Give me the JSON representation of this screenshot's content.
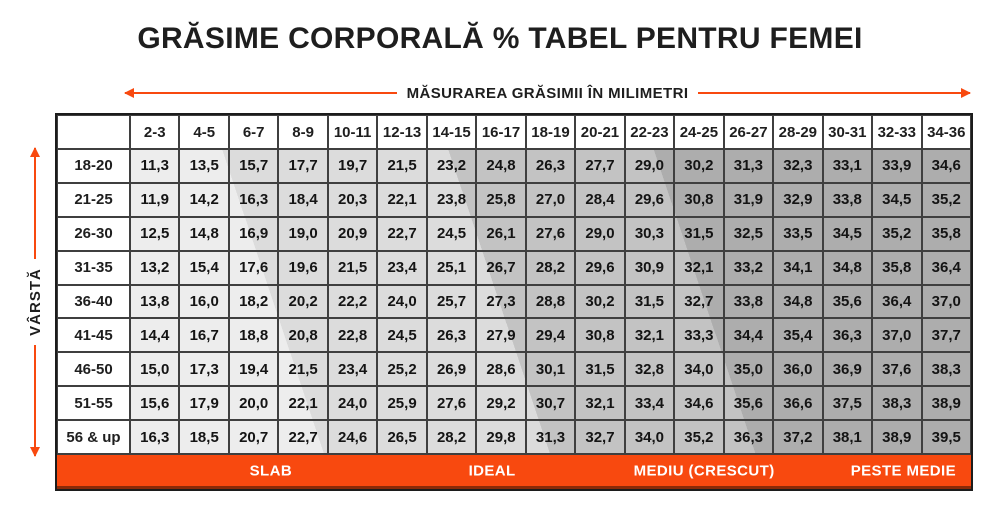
{
  "title": "GRĂSIME CORPORALĂ % TABEL PENTRU FEMEI",
  "measure_axis": {
    "label": "MĂSURAREA GRĂSIMII ÎN MILIMETRI"
  },
  "age_axis": {
    "label": "VÂRSTĂ"
  },
  "colors": {
    "accent_orange": "#F8490F",
    "banner_text": "#FFFFFF",
    "grid_line": "#3F3F3F",
    "band_lightest": "#EDEDED",
    "band_light": "#DCDCDC",
    "band_medium": "#C3C3C3",
    "band_dark": "#ADADAD",
    "title_text": "#1E1E1E"
  },
  "chart_data": {
    "type": "table",
    "title": "GRĂSIME CORPORALĂ % TABEL PENTRU FEMEI",
    "xlabel": "MĂSURAREA GRĂSIMII ÎN MILIMETRI",
    "ylabel": "VÂRSTĂ",
    "decimal_separator": ",",
    "columns": [
      "2-3",
      "4-5",
      "6-7",
      "8-9",
      "10-11",
      "12-13",
      "14-15",
      "16-17",
      "18-19",
      "20-21",
      "22-23",
      "24-25",
      "26-27",
      "28-29",
      "30-31",
      "32-33",
      "34-36"
    ],
    "rows": [
      {
        "age": "18-20",
        "values": [
          11.3,
          13.5,
          15.7,
          17.7,
          19.7,
          21.5,
          23.2,
          24.8,
          26.3,
          27.7,
          29.0,
          30.2,
          31.3,
          32.3,
          33.1,
          33.9,
          34.6
        ]
      },
      {
        "age": "21-25",
        "values": [
          11.9,
          14.2,
          16.3,
          18.4,
          20.3,
          22.1,
          23.8,
          25.8,
          27.0,
          28.4,
          29.6,
          30.8,
          31.9,
          32.9,
          33.8,
          34.5,
          35.2
        ]
      },
      {
        "age": "26-30",
        "values": [
          12.5,
          14.8,
          16.9,
          19.0,
          20.9,
          22.7,
          24.5,
          26.1,
          27.6,
          29.0,
          30.3,
          31.5,
          32.5,
          33.5,
          34.5,
          35.2,
          35.8
        ]
      },
      {
        "age": "31-35",
        "values": [
          13.2,
          15.4,
          17.6,
          19.6,
          21.5,
          23.4,
          25.1,
          26.7,
          28.2,
          29.6,
          30.9,
          32.1,
          33.2,
          34.1,
          34.8,
          35.8,
          36.4
        ]
      },
      {
        "age": "36-40",
        "values": [
          13.8,
          16.0,
          18.2,
          20.2,
          22.2,
          24.0,
          25.7,
          27.3,
          28.8,
          30.2,
          31.5,
          32.7,
          33.8,
          34.8,
          35.6,
          36.4,
          37.0
        ]
      },
      {
        "age": "41-45",
        "values": [
          14.4,
          16.7,
          18.8,
          20.8,
          22.8,
          24.5,
          26.3,
          27.9,
          29.4,
          30.8,
          32.1,
          33.3,
          34.4,
          35.4,
          36.3,
          37.0,
          37.7
        ]
      },
      {
        "age": "46-50",
        "values": [
          15.0,
          17.3,
          19.4,
          21.5,
          23.4,
          25.2,
          26.9,
          28.6,
          30.1,
          31.5,
          32.8,
          34.0,
          35.0,
          36.0,
          36.9,
          37.6,
          38.3
        ]
      },
      {
        "age": "51-55",
        "values": [
          15.6,
          17.9,
          20.0,
          22.1,
          24.0,
          25.9,
          27.6,
          29.2,
          30.7,
          32.1,
          33.4,
          34.6,
          35.6,
          36.6,
          37.5,
          38.3,
          38.9
        ]
      },
      {
        "age": "56 & up",
        "values": [
          16.3,
          18.5,
          20.7,
          22.7,
          24.6,
          26.5,
          28.2,
          29.8,
          31.3,
          32.7,
          34.0,
          35.2,
          36.3,
          37.2,
          38.1,
          38.9,
          39.5
        ]
      }
    ],
    "categories": [
      "SLAB",
      "IDEAL",
      "MEDIU (CRESCUT)",
      "PESTE MEDIE"
    ],
    "legend_position": "bottom",
    "grid": true
  }
}
